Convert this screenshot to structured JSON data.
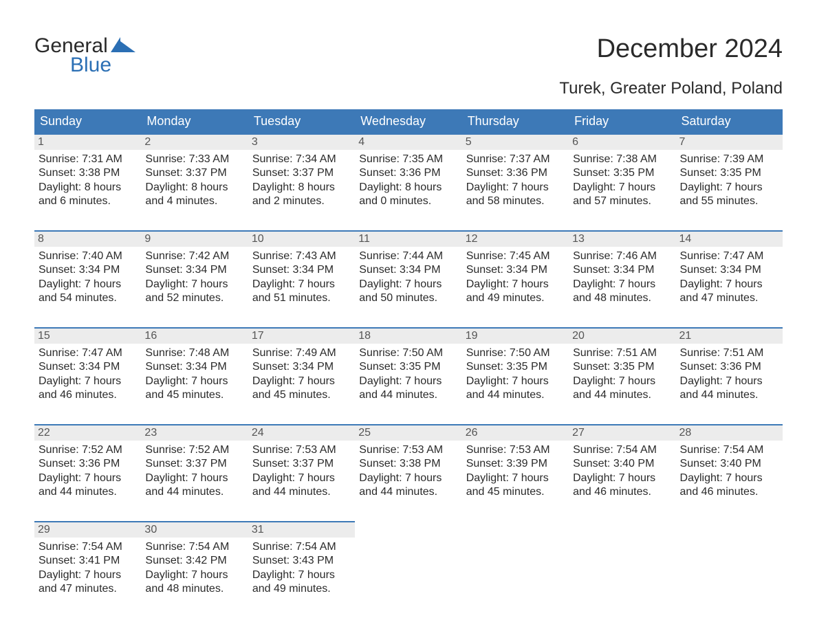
{
  "brand": {
    "word1": "General",
    "word2": "Blue"
  },
  "title": "December 2024",
  "location": "Turek, Greater Poland, Poland",
  "colors": {
    "header_bg": "#3d79b7",
    "header_text": "#ffffff",
    "accent_border": "#3d79b7",
    "daynum_bg": "#ececec",
    "body_text": "#2a2a2a",
    "daynum_text": "#555555",
    "page_bg": "#ffffff"
  },
  "day_headers": [
    "Sunday",
    "Monday",
    "Tuesday",
    "Wednesday",
    "Thursday",
    "Friday",
    "Saturday"
  ],
  "weeks": [
    [
      {
        "n": "1",
        "sunrise": "7:31 AM",
        "sunset": "3:38 PM",
        "dl1": "Daylight: 8 hours",
        "dl2": "and 6 minutes."
      },
      {
        "n": "2",
        "sunrise": "7:33 AM",
        "sunset": "3:37 PM",
        "dl1": "Daylight: 8 hours",
        "dl2": "and 4 minutes."
      },
      {
        "n": "3",
        "sunrise": "7:34 AM",
        "sunset": "3:37 PM",
        "dl1": "Daylight: 8 hours",
        "dl2": "and 2 minutes."
      },
      {
        "n": "4",
        "sunrise": "7:35 AM",
        "sunset": "3:36 PM",
        "dl1": "Daylight: 8 hours",
        "dl2": "and 0 minutes."
      },
      {
        "n": "5",
        "sunrise": "7:37 AM",
        "sunset": "3:36 PM",
        "dl1": "Daylight: 7 hours",
        "dl2": "and 58 minutes."
      },
      {
        "n": "6",
        "sunrise": "7:38 AM",
        "sunset": "3:35 PM",
        "dl1": "Daylight: 7 hours",
        "dl2": "and 57 minutes."
      },
      {
        "n": "7",
        "sunrise": "7:39 AM",
        "sunset": "3:35 PM",
        "dl1": "Daylight: 7 hours",
        "dl2": "and 55 minutes."
      }
    ],
    [
      {
        "n": "8",
        "sunrise": "7:40 AM",
        "sunset": "3:34 PM",
        "dl1": "Daylight: 7 hours",
        "dl2": "and 54 minutes."
      },
      {
        "n": "9",
        "sunrise": "7:42 AM",
        "sunset": "3:34 PM",
        "dl1": "Daylight: 7 hours",
        "dl2": "and 52 minutes."
      },
      {
        "n": "10",
        "sunrise": "7:43 AM",
        "sunset": "3:34 PM",
        "dl1": "Daylight: 7 hours",
        "dl2": "and 51 minutes."
      },
      {
        "n": "11",
        "sunrise": "7:44 AM",
        "sunset": "3:34 PM",
        "dl1": "Daylight: 7 hours",
        "dl2": "and 50 minutes."
      },
      {
        "n": "12",
        "sunrise": "7:45 AM",
        "sunset": "3:34 PM",
        "dl1": "Daylight: 7 hours",
        "dl2": "and 49 minutes."
      },
      {
        "n": "13",
        "sunrise": "7:46 AM",
        "sunset": "3:34 PM",
        "dl1": "Daylight: 7 hours",
        "dl2": "and 48 minutes."
      },
      {
        "n": "14",
        "sunrise": "7:47 AM",
        "sunset": "3:34 PM",
        "dl1": "Daylight: 7 hours",
        "dl2": "and 47 minutes."
      }
    ],
    [
      {
        "n": "15",
        "sunrise": "7:47 AM",
        "sunset": "3:34 PM",
        "dl1": "Daylight: 7 hours",
        "dl2": "and 46 minutes."
      },
      {
        "n": "16",
        "sunrise": "7:48 AM",
        "sunset": "3:34 PM",
        "dl1": "Daylight: 7 hours",
        "dl2": "and 45 minutes."
      },
      {
        "n": "17",
        "sunrise": "7:49 AM",
        "sunset": "3:34 PM",
        "dl1": "Daylight: 7 hours",
        "dl2": "and 45 minutes."
      },
      {
        "n": "18",
        "sunrise": "7:50 AM",
        "sunset": "3:35 PM",
        "dl1": "Daylight: 7 hours",
        "dl2": "and 44 minutes."
      },
      {
        "n": "19",
        "sunrise": "7:50 AM",
        "sunset": "3:35 PM",
        "dl1": "Daylight: 7 hours",
        "dl2": "and 44 minutes."
      },
      {
        "n": "20",
        "sunrise": "7:51 AM",
        "sunset": "3:35 PM",
        "dl1": "Daylight: 7 hours",
        "dl2": "and 44 minutes."
      },
      {
        "n": "21",
        "sunrise": "7:51 AM",
        "sunset": "3:36 PM",
        "dl1": "Daylight: 7 hours",
        "dl2": "and 44 minutes."
      }
    ],
    [
      {
        "n": "22",
        "sunrise": "7:52 AM",
        "sunset": "3:36 PM",
        "dl1": "Daylight: 7 hours",
        "dl2": "and 44 minutes."
      },
      {
        "n": "23",
        "sunrise": "7:52 AM",
        "sunset": "3:37 PM",
        "dl1": "Daylight: 7 hours",
        "dl2": "and 44 minutes."
      },
      {
        "n": "24",
        "sunrise": "7:53 AM",
        "sunset": "3:37 PM",
        "dl1": "Daylight: 7 hours",
        "dl2": "and 44 minutes."
      },
      {
        "n": "25",
        "sunrise": "7:53 AM",
        "sunset": "3:38 PM",
        "dl1": "Daylight: 7 hours",
        "dl2": "and 44 minutes."
      },
      {
        "n": "26",
        "sunrise": "7:53 AM",
        "sunset": "3:39 PM",
        "dl1": "Daylight: 7 hours",
        "dl2": "and 45 minutes."
      },
      {
        "n": "27",
        "sunrise": "7:54 AM",
        "sunset": "3:40 PM",
        "dl1": "Daylight: 7 hours",
        "dl2": "and 46 minutes."
      },
      {
        "n": "28",
        "sunrise": "7:54 AM",
        "sunset": "3:40 PM",
        "dl1": "Daylight: 7 hours",
        "dl2": "and 46 minutes."
      }
    ],
    [
      {
        "n": "29",
        "sunrise": "7:54 AM",
        "sunset": "3:41 PM",
        "dl1": "Daylight: 7 hours",
        "dl2": "and 47 minutes."
      },
      {
        "n": "30",
        "sunrise": "7:54 AM",
        "sunset": "3:42 PM",
        "dl1": "Daylight: 7 hours",
        "dl2": "and 48 minutes."
      },
      {
        "n": "31",
        "sunrise": "7:54 AM",
        "sunset": "3:43 PM",
        "dl1": "Daylight: 7 hours",
        "dl2": "and 49 minutes."
      },
      null,
      null,
      null,
      null
    ]
  ],
  "labels": {
    "sunrise_prefix": "Sunrise: ",
    "sunset_prefix": "Sunset: "
  }
}
